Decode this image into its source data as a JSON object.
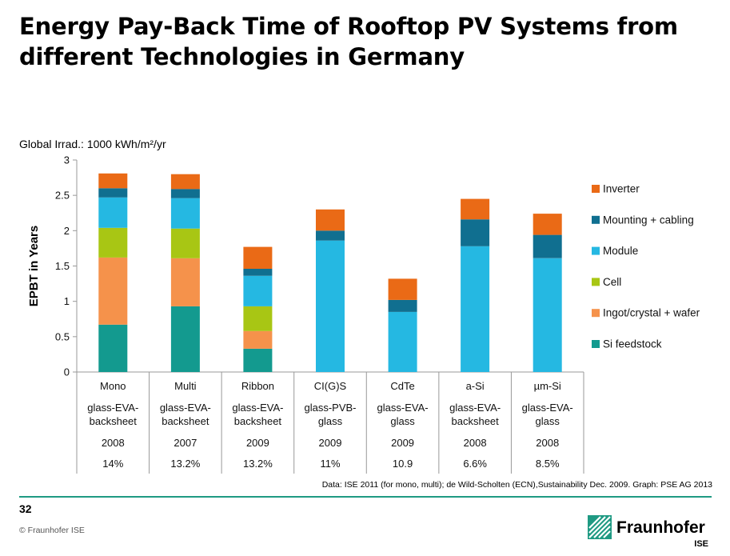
{
  "slide": {
    "title": "Energy Pay-Back Time of Rooftop PV Systems from different Technologies in Germany",
    "irradiation_note": "Global Irrad.: 1000 kWh/m²/yr",
    "source_note": "Data: ISE 2011 (for mono, multi); de Wild-Scholten (ECN),Sustainability Dec. 2009. Graph: PSE AG 2013",
    "page_number": "32",
    "copyright": "© Fraunhofer ISE",
    "logo": {
      "name": "Fraunhofer",
      "sub": "ISE"
    }
  },
  "chart_data": {
    "type": "bar",
    "stacked": true,
    "ylabel": "EPBT in Years",
    "ylim": [
      0,
      3
    ],
    "yticks": [
      0,
      0.5,
      1,
      1.5,
      2,
      2.5,
      3
    ],
    "ytick_labels": [
      "0",
      "0.5",
      "1",
      "1.5",
      "2",
      "2.5",
      "3"
    ],
    "categories": [
      "Mono",
      "Multi",
      "Ribbon",
      "CI(G)S",
      "CdTe",
      "a-Si",
      "µm-Si"
    ],
    "table_rows": [
      [
        "glass-EVA-\nbacksheet",
        "glass-EVA-\nbacksheet",
        "glass-EVA-\nbacksheet",
        "glass-PVB-\nglass",
        "glass-EVA-\nglass",
        "glass-EVA-\nbacksheet",
        "glass-EVA-\nglass"
      ],
      [
        "2008",
        "2007",
        "2009",
        "2009",
        "2009",
        "2008",
        "2008"
      ],
      [
        "14%",
        "13.2%",
        "13.2%",
        "11%",
        "10.9",
        "6.6%",
        "8.5%"
      ]
    ],
    "series": [
      {
        "name": "Si feedstock",
        "color": "#139a8f",
        "values": [
          0.67,
          0.93,
          0.33,
          0,
          0,
          0,
          0
        ]
      },
      {
        "name": "Ingot/crystal + wafer",
        "color": "#f5924b",
        "values": [
          0.95,
          0.68,
          0.25,
          0,
          0,
          0,
          0
        ]
      },
      {
        "name": "Cell",
        "color": "#a8c614",
        "values": [
          0.42,
          0.42,
          0.35,
          0,
          0,
          0,
          0
        ]
      },
      {
        "name": "Module",
        "color": "#25b8e2",
        "values": [
          0.43,
          0.43,
          0.43,
          1.86,
          0.85,
          1.78,
          1.61
        ]
      },
      {
        "name": "Mounting + cabling",
        "color": "#106f90",
        "values": [
          0.13,
          0.13,
          0.1,
          0.14,
          0.17,
          0.38,
          0.33
        ]
      },
      {
        "name": "Inverter",
        "color": "#ea6a16",
        "values": [
          0.21,
          0.21,
          0.31,
          0.3,
          0.3,
          0.29,
          0.3
        ]
      }
    ],
    "legend_order": [
      "Inverter",
      "Mounting + cabling",
      "Module",
      "Cell",
      "Ingot/crystal + wafer",
      "Si feedstock"
    ],
    "legend_position": "right"
  }
}
